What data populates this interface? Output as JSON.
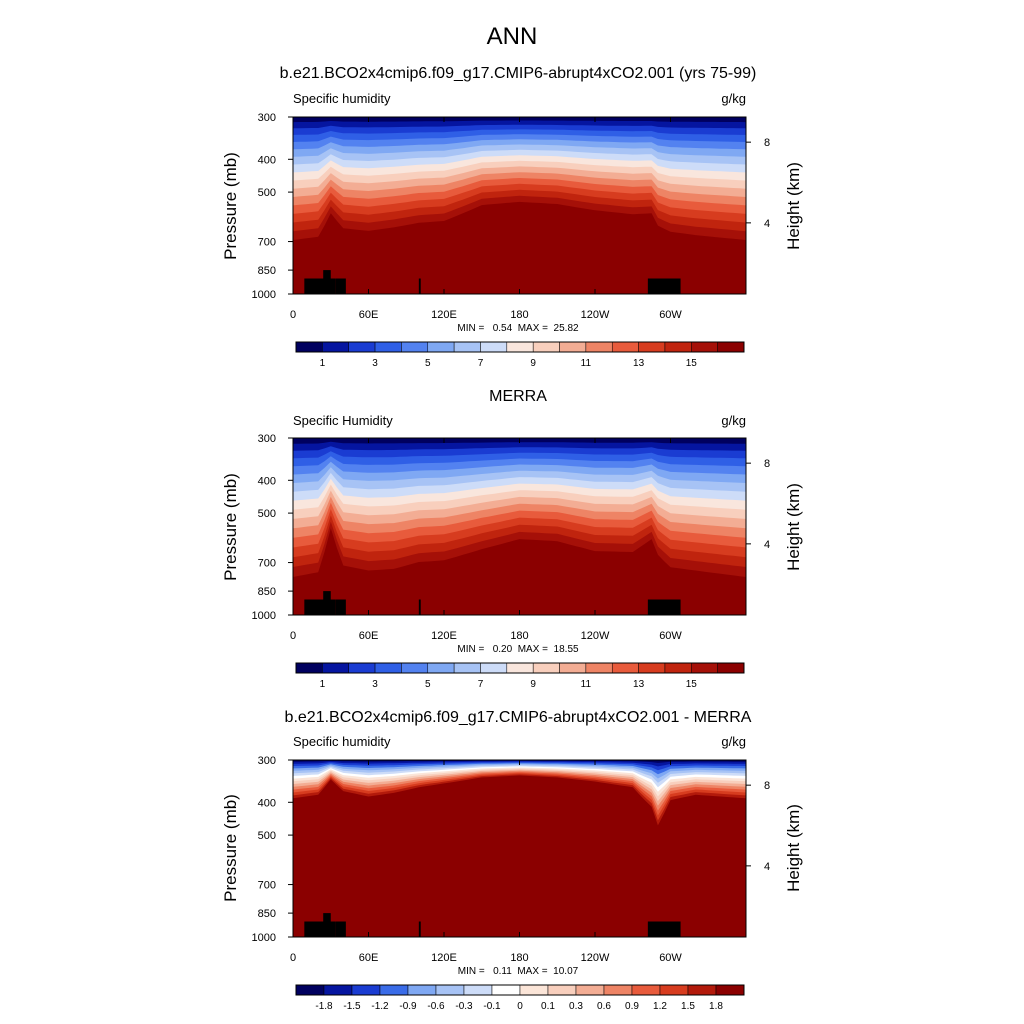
{
  "main_title": "ANN",
  "chart_data": [
    {
      "type": "heatmap",
      "title": "b.e21.BCO2x4cmip6.f09_g17.CMIP6-abrupt4xCO2.001 (yrs 75-99)",
      "left_label": "Specific humidity",
      "right_label": "g/kg",
      "ylabel": "Pressure (mb)",
      "ylabel_right": "Height (km)",
      "yticks": [
        300,
        400,
        500,
        700,
        850,
        1000
      ],
      "yticks_right": [
        8,
        4
      ],
      "xticks": [
        "0",
        "60E",
        "120E",
        "180",
        "120W",
        "60W"
      ],
      "xtick_values": [
        0,
        60,
        120,
        180,
        240,
        300
      ],
      "xlim": [
        0,
        360
      ],
      "ylim": [
        1000,
        300
      ],
      "min_label": "MIN =   0.54  MAX =  25.82",
      "colorbar_labels": [
        "1",
        "3",
        "5",
        "7",
        "9",
        "11",
        "13",
        "15"
      ],
      "palette": "blue-white-red",
      "colorbar_levels": 18,
      "profile_x": [
        0,
        20,
        30,
        40,
        60,
        80,
        100,
        120,
        150,
        180,
        210,
        240,
        270,
        285,
        290,
        300,
        320,
        340,
        360
      ],
      "profile_dry_pressure": [
        790,
        770,
        640,
        720,
        735,
        715,
        690,
        680,
        600,
        585,
        595,
        625,
        645,
        640,
        705,
        740,
        760,
        775,
        790
      ],
      "moist_max": 0.92
    },
    {
      "type": "heatmap",
      "title": "MERRA",
      "left_label": "Specific Humidity",
      "right_label": "g/kg",
      "ylabel": "Pressure (mb)",
      "ylabel_right": "Height (km)",
      "yticks": [
        300,
        400,
        500,
        700,
        850,
        1000
      ],
      "yticks_right": [
        8,
        4
      ],
      "xticks": [
        "0",
        "60E",
        "120E",
        "180",
        "120W",
        "60W"
      ],
      "xtick_values": [
        0,
        60,
        120,
        180,
        240,
        300
      ],
      "xlim": [
        0,
        360
      ],
      "ylim": [
        1000,
        300
      ],
      "min_label": "MIN =   0.20  MAX =  18.55",
      "colorbar_labels": [
        "1",
        "3",
        "5",
        "7",
        "9",
        "11",
        "13",
        "15"
      ],
      "palette": "blue-white-red",
      "colorbar_levels": 18,
      "profile_x": [
        0,
        20,
        30,
        40,
        60,
        80,
        100,
        120,
        150,
        180,
        210,
        240,
        270,
        285,
        290,
        300,
        320,
        340,
        360
      ],
      "profile_dry_pressure": [
        850,
        820,
        590,
        780,
        810,
        800,
        760,
        750,
        690,
        640,
        650,
        700,
        705,
        640,
        720,
        790,
        810,
        830,
        850
      ],
      "moist_max": 0.96
    },
    {
      "type": "heatmap",
      "title": "b.e21.BCO2x4cmip6.f09_g17.CMIP6-abrupt4xCO2.001 - MERRA",
      "left_label": "Specific humidity",
      "right_label": "g/kg",
      "ylabel": "Pressure (mb)",
      "ylabel_right": "Height (km)",
      "yticks": [
        300,
        400,
        500,
        700,
        850,
        1000
      ],
      "yticks_right": [
        8,
        4
      ],
      "xticks": [
        "0",
        "60E",
        "120E",
        "180",
        "120W",
        "60W"
      ],
      "xtick_values": [
        0,
        60,
        120,
        180,
        240,
        300
      ],
      "xlim": [
        0,
        360
      ],
      "ylim": [
        1000,
        300
      ],
      "min_label": "MIN =   0.11  MAX =  10.07",
      "colorbar_labels": [
        "-1.8",
        "-1.5",
        "-1.2",
        "-0.9",
        "-0.6",
        "-0.3",
        "-0.1",
        "0",
        "0.1",
        "0.3",
        "0.6",
        "0.9",
        "1.2",
        "1.5",
        "1.8"
      ],
      "palette": "diverging",
      "colorbar_levels": 16,
      "profile_x": [
        0,
        20,
        30,
        40,
        60,
        80,
        100,
        120,
        150,
        180,
        210,
        240,
        270,
        285,
        290,
        300,
        320,
        340,
        360
      ],
      "profile_dry_pressure": [
        395,
        385,
        345,
        375,
        390,
        380,
        365,
        355,
        340,
        335,
        340,
        350,
        365,
        420,
        480,
        400,
        385,
        390,
        395
      ],
      "moist_max": 1.0
    }
  ],
  "colors": {
    "blue_white_red": [
      "#00005f",
      "#0515a0",
      "#1a3cd2",
      "#2f5fe6",
      "#5382f0",
      "#7fa8f3",
      "#a7c3f5",
      "#cddcf8",
      "#f9e6dd",
      "#f8cfbd",
      "#f3ad94",
      "#ee8465",
      "#e85b3c",
      "#d73c1f",
      "#c0240e",
      "#a51008",
      "#8b0000"
    ],
    "diverging": [
      "#00005f",
      "#0515a0",
      "#1a3cd2",
      "#3a6ce8",
      "#7fa8f3",
      "#a7c3f5",
      "#cddcf8",
      "#ffffff",
      "#fbe5d8",
      "#f8cfbd",
      "#f3ad94",
      "#ee8465",
      "#e85b3c",
      "#d73c1f",
      "#b31a0b",
      "#8b0000"
    ],
    "topography": "#000000"
  }
}
